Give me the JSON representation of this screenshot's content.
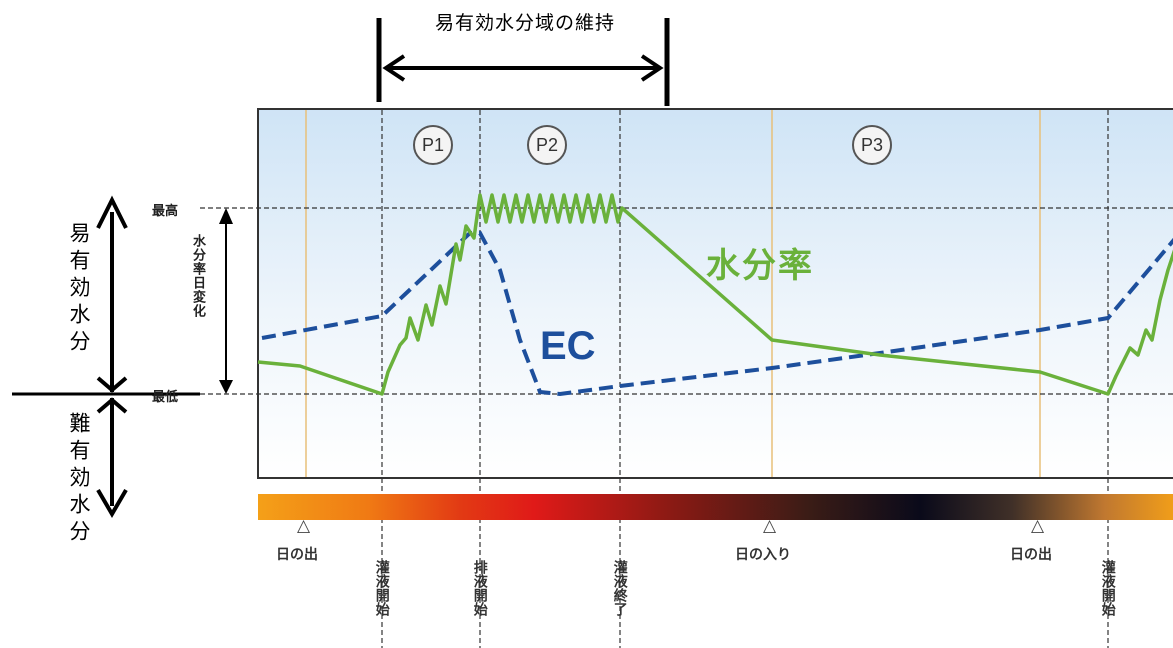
{
  "header": {
    "title": "易有効水分域の維持"
  },
  "left_axis": {
    "upper_label": "易有効水分",
    "lower_label": "難有効水分"
  },
  "levels": {
    "max": "最高",
    "min": "最低",
    "range_label": "水分率日変化"
  },
  "phases": [
    "P1",
    "P2",
    "P3"
  ],
  "series_labels": {
    "ec": "EC",
    "moisture": "水分率"
  },
  "events": {
    "sunrise_1": "日の出",
    "irrigation_start_1": "灌液開始",
    "drain_start": "排液開始",
    "irrigation_end": "灌液終了",
    "sunset": "日の入り",
    "sunrise_2": "日の出",
    "irrigation_start_2": "灌液開始"
  },
  "colors": {
    "moisture_line": "#6ab13b",
    "ec_line": "#1d4f9c",
    "sun_line": "#e8c07a",
    "plot_top": "#cfe4f6",
    "plot_bottom": "#ffffff"
  },
  "icons": {
    "sun_marker": "triangle-up-icon"
  }
}
